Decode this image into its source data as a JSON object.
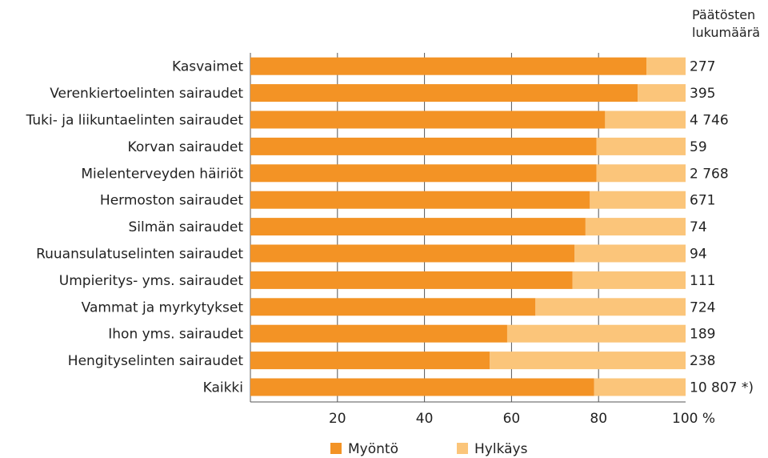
{
  "chart_data": {
    "type": "bar",
    "orientation": "horizontal",
    "stacked": true,
    "categories": [
      "Kasvaimet",
      "Verenkiertoelinten sairaudet",
      "Tuki- ja liikuntaelinten sairaudet",
      "Korvan sairaudet",
      "Mielenterveyden häiriöt",
      "Hermoston sairaudet",
      "Silmän sairaudet",
      "Ruuansulatuselinten sairaudet",
      "Umpieritys- yms. sairaudet",
      "Vammat ja myrkytykset",
      "Ihon yms. sairaudet",
      "Hengityselinten sairaudet",
      "Kaikki"
    ],
    "series": [
      {
        "name": "Myöntö",
        "color": "#f39325",
        "values": [
          91,
          89,
          81.5,
          79.5,
          79.5,
          78,
          77,
          74.5,
          74,
          65.5,
          59,
          55,
          79
        ]
      },
      {
        "name": "Hylkäys",
        "color": "#fbc57a",
        "values": [
          9,
          11,
          18.5,
          20.5,
          20.5,
          22,
          23,
          25.5,
          26,
          34.5,
          41,
          45,
          21
        ]
      }
    ],
    "decision_counts": [
      "277",
      "395",
      "4 746",
      "59",
      "2 768",
      "671",
      "74",
      "94",
      "111",
      "724",
      "189",
      "238",
      "10 807 *)"
    ],
    "counts_header": [
      "Päätösten",
      "lukumäärä"
    ],
    "x_ticks": [
      "20",
      "40",
      "60",
      "80",
      "100 %"
    ],
    "xlim": [
      0,
      100
    ],
    "grid": true,
    "legend_position": "bottom"
  }
}
